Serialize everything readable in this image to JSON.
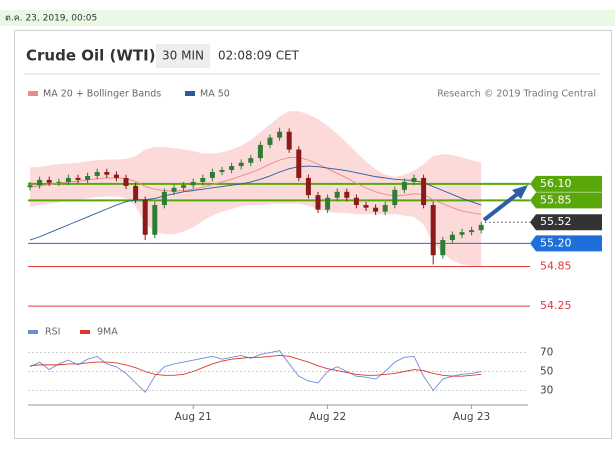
{
  "header": {
    "timestamp": "ต.ค. 23, 2019, 00:05"
  },
  "chart_data": {
    "type": "candlestick",
    "title": "Crude Oil (WTI)",
    "interval": "30 MIN",
    "time": "02:08:09 CET",
    "source": "Research © 2019 Trading Central",
    "categories": [
      null,
      null,
      null,
      null,
      null,
      null,
      null,
      null,
      null,
      null,
      null,
      null,
      null,
      null,
      null,
      null,
      null,
      "Aug 21",
      null,
      null,
      null,
      null,
      null,
      null,
      null,
      null,
      null,
      null,
      null,
      null,
      null,
      "Aug 22",
      null,
      null,
      null,
      null,
      null,
      null,
      null,
      null,
      null,
      null,
      null,
      null,
      null,
      null,
      "Aug 23",
      null
    ],
    "ylim": [
      54.07,
      57.37
    ],
    "up_color": "#2e7d32",
    "down_color": "#8b1a1a",
    "ohlc": {
      "open": [
        56.05,
        56.08,
        56.16,
        56.12,
        56.13,
        56.19,
        56.16,
        56.22,
        56.28,
        56.24,
        56.19,
        56.07,
        55.86,
        55.33,
        55.78,
        55.98,
        56.04,
        56.08,
        56.13,
        56.19,
        56.28,
        56.31,
        56.37,
        56.42,
        56.49,
        56.69,
        56.8,
        56.89,
        56.62,
        56.19,
        55.93,
        55.71,
        55.89,
        55.98,
        55.89,
        55.78,
        55.74,
        55.68,
        55.78,
        56.01,
        56.13,
        56.19,
        55.78,
        55.02,
        55.25,
        55.33,
        55.37,
        55.4
      ],
      "high": [
        56.13,
        56.21,
        56.21,
        56.18,
        56.24,
        56.24,
        56.27,
        56.33,
        56.33,
        56.29,
        56.24,
        56.12,
        55.91,
        55.83,
        56.03,
        56.09,
        56.13,
        56.18,
        56.24,
        56.33,
        56.36,
        56.42,
        56.47,
        56.54,
        56.74,
        56.85,
        56.95,
        56.94,
        56.67,
        56.24,
        55.98,
        55.94,
        56.03,
        56.03,
        55.94,
        55.83,
        55.79,
        55.83,
        56.06,
        56.18,
        56.24,
        56.24,
        55.83,
        55.3,
        55.38,
        55.42,
        55.45,
        55.53
      ],
      "low": [
        56.0,
        56.03,
        56.07,
        56.07,
        56.08,
        56.11,
        56.11,
        56.17,
        56.19,
        56.14,
        56.02,
        55.81,
        55.25,
        55.28,
        55.73,
        55.93,
        55.99,
        56.03,
        56.08,
        56.14,
        56.23,
        56.26,
        56.32,
        56.37,
        56.44,
        56.64,
        56.75,
        56.57,
        56.14,
        55.88,
        55.66,
        55.66,
        55.84,
        55.84,
        55.73,
        55.69,
        55.63,
        55.63,
        55.73,
        55.96,
        56.08,
        55.73,
        54.88,
        54.97,
        55.2,
        55.28,
        55.32,
        55.35
      ],
      "close": [
        56.08,
        56.16,
        56.12,
        56.13,
        56.19,
        56.16,
        56.22,
        56.28,
        56.24,
        56.19,
        56.07,
        55.86,
        55.33,
        55.78,
        55.98,
        56.04,
        56.08,
        56.13,
        56.19,
        56.28,
        56.31,
        56.37,
        56.42,
        56.49,
        56.69,
        56.8,
        56.89,
        56.62,
        56.19,
        55.93,
        55.71,
        55.89,
        55.98,
        55.89,
        55.78,
        55.74,
        55.68,
        55.78,
        56.01,
        56.13,
        56.19,
        55.78,
        55.02,
        55.25,
        55.33,
        55.37,
        55.4,
        55.48
      ]
    },
    "series": [
      {
        "name": "MA 20 + Bollinger Bands",
        "color": "#e98a8a",
        "band_color": "#fbd3d3",
        "values": [
          56.05,
          56.07,
          56.09,
          56.11,
          56.13,
          56.14,
          56.16,
          56.18,
          56.19,
          56.19,
          56.18,
          56.14,
          56.06,
          56.02,
          56.0,
          55.99,
          56.0,
          56.02,
          56.05,
          56.09,
          56.13,
          56.17,
          56.22,
          56.27,
          56.33,
          56.4,
          56.46,
          56.5,
          56.5,
          56.46,
          56.4,
          56.33,
          56.26,
          56.19,
          56.11,
          56.04,
          55.98,
          55.94,
          55.92,
          55.93,
          55.95,
          55.94,
          55.86,
          55.8,
          55.74,
          55.69,
          55.66,
          55.64
        ],
        "upper": [
          56.35,
          56.36,
          56.38,
          56.4,
          56.41,
          56.42,
          56.44,
          56.46,
          56.47,
          56.47,
          56.48,
          56.52,
          56.62,
          56.66,
          56.66,
          56.64,
          56.62,
          56.6,
          56.56,
          56.56,
          56.58,
          56.62,
          56.68,
          56.76,
          56.88,
          57.0,
          57.12,
          57.2,
          57.2,
          57.15,
          57.08,
          56.98,
          56.86,
          56.72,
          56.58,
          56.44,
          56.32,
          56.24,
          56.2,
          56.24,
          56.3,
          56.4,
          56.52,
          56.55,
          56.54,
          56.5,
          56.46,
          56.42
        ],
        "lower": [
          55.75,
          55.78,
          55.8,
          55.82,
          55.85,
          55.86,
          55.88,
          55.9,
          55.91,
          55.91,
          55.88,
          55.76,
          55.5,
          55.38,
          55.34,
          55.34,
          55.38,
          55.44,
          55.54,
          55.62,
          55.68,
          55.72,
          55.76,
          55.78,
          55.78,
          55.8,
          55.8,
          55.8,
          55.8,
          55.77,
          55.72,
          55.68,
          55.66,
          55.66,
          55.64,
          55.64,
          55.64,
          55.64,
          55.64,
          55.62,
          55.6,
          55.48,
          55.2,
          55.05,
          54.94,
          54.88,
          54.86,
          54.86
        ]
      },
      {
        "name": "MA 50",
        "color": "#2b5b9c",
        "values": [
          55.25,
          55.3,
          55.36,
          55.42,
          55.48,
          55.54,
          55.6,
          55.66,
          55.72,
          55.78,
          55.83,
          55.86,
          55.86,
          55.88,
          55.92,
          55.95,
          55.98,
          56.0,
          56.02,
          56.04,
          56.06,
          56.08,
          56.1,
          56.13,
          56.17,
          56.22,
          56.28,
          56.33,
          56.36,
          56.37,
          56.36,
          56.34,
          56.32,
          56.3,
          56.27,
          56.24,
          56.21,
          56.19,
          56.17,
          56.16,
          56.15,
          56.12,
          56.06,
          56.0,
          55.94,
          55.88,
          55.83,
          55.78
        ]
      }
    ],
    "levels": [
      {
        "value": 56.1,
        "label": "56.10",
        "color": "#5aa70a",
        "kind": "box"
      },
      {
        "value": 55.85,
        "label": "55.85",
        "color": "#5aa70a",
        "kind": "box"
      },
      {
        "value": 55.52,
        "label": "55.52",
        "color": "#333333",
        "kind": "current"
      },
      {
        "value": 55.2,
        "label": "55.20",
        "color": "#1e6fd9",
        "kind": "box"
      },
      {
        "value": 54.85,
        "label": "54.85",
        "color": "#e03a3a",
        "kind": "text"
      },
      {
        "value": 54.25,
        "label": "54.25",
        "color": "#e03a3a",
        "kind": "text"
      }
    ],
    "rsi": {
      "ylim": [
        22,
        78
      ],
      "yticks": [
        30,
        50,
        70
      ],
      "grid": true,
      "series": [
        {
          "name": "RSI",
          "color": "#6d8fd6",
          "values": [
            55,
            60,
            52,
            58,
            62,
            57,
            63,
            66,
            58,
            55,
            48,
            38,
            28,
            45,
            55,
            58,
            60,
            62,
            64,
            66,
            63,
            65,
            67,
            64,
            68,
            70,
            72,
            58,
            45,
            40,
            38,
            50,
            55,
            50,
            45,
            44,
            42,
            50,
            60,
            65,
            66,
            45,
            30,
            42,
            45,
            47,
            48,
            50
          ]
        },
        {
          "name": "9MA",
          "color": "#d93a2b",
          "values": [
            56,
            57,
            57,
            57,
            58,
            58,
            59,
            60,
            60,
            59,
            57,
            54,
            50,
            47,
            46,
            46,
            47,
            50,
            54,
            58,
            61,
            63,
            64,
            65,
            65,
            66,
            67,
            66,
            63,
            60,
            56,
            53,
            51,
            49,
            47,
            46,
            46,
            47,
            48,
            50,
            52,
            51,
            48,
            46,
            45,
            45,
            46,
            47
          ]
        }
      ]
    }
  }
}
